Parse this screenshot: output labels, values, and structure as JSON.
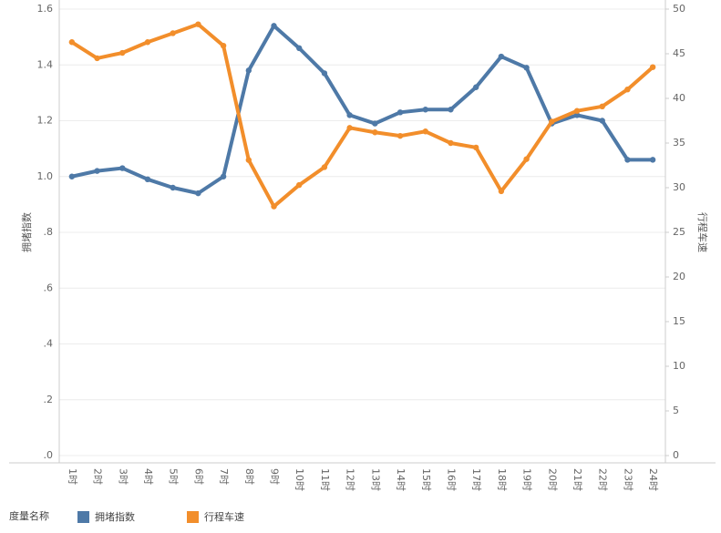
{
  "chart_data": {
    "type": "line",
    "categories": [
      "1时",
      "2时",
      "3时",
      "4时",
      "5时",
      "6时",
      "7时",
      "8时",
      "9时",
      "10时",
      "11时",
      "12时",
      "13时",
      "14时",
      "15时",
      "16时",
      "17时",
      "18时",
      "19时",
      "20时",
      "21时",
      "22时",
      "23时",
      "24时"
    ],
    "y_label": "拥堵指数",
    "y2_label": "行程车速",
    "legend_title": "度量名称",
    "series": [
      {
        "name": "拥堵指数",
        "color": "#4e79a7",
        "axis": "y",
        "values": [
          1.0,
          1.02,
          1.03,
          0.99,
          0.96,
          0.94,
          1.0,
          1.38,
          1.54,
          1.46,
          1.37,
          1.22,
          1.19,
          1.23,
          1.24,
          1.24,
          1.32,
          1.43,
          1.39,
          1.19,
          1.22,
          1.2,
          1.06,
          1.06
        ]
      },
      {
        "name": "行程车速",
        "color": "#f28e2b",
        "axis": "y2",
        "values": [
          46.3,
          44.5,
          45.1,
          46.3,
          47.3,
          48.3,
          45.9,
          33.1,
          27.9,
          30.3,
          32.3,
          36.7,
          36.2,
          35.8,
          36.3,
          35.0,
          34.5,
          29.6,
          33.2,
          37.4,
          38.6,
          39.1,
          41.0,
          43.5
        ]
      }
    ],
    "ylim": [
      0,
      1.6
    ],
    "yticks": [
      {
        "value": 0,
        "label": ".0"
      },
      {
        "value": 0.2,
        "label": ".2"
      },
      {
        "value": 0.4,
        "label": ".4"
      },
      {
        "value": 0.6,
        "label": ".6"
      },
      {
        "value": 0.8,
        "label": ".8"
      },
      {
        "value": 1,
        "label": "1.0"
      },
      1.2,
      1.4,
      1.6
    ],
    "y2lim": [
      0,
      50
    ],
    "y2ticks": [
      0,
      5,
      10,
      15,
      20,
      25,
      30,
      35,
      40,
      45,
      50
    ],
    "grid": true
  }
}
